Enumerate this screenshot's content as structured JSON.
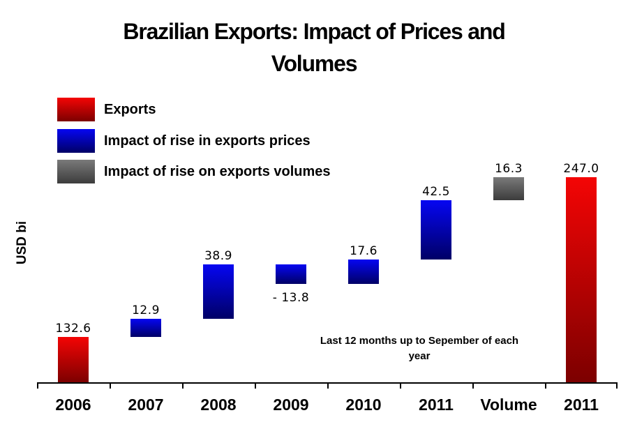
{
  "chart_data": {
    "type": "bar",
    "subtype": "waterfall",
    "title": "Brazilian Exports: Impact of Prices and Volumes",
    "title_lines": [
      "Brazilian Exports: Impact of Prices and",
      "Volumes"
    ],
    "ylabel": "USD bi",
    "annotation": "Last 12 months up to Sepember of each year",
    "annotation_lines": [
      "Last 12 months up to Sepember of each",
      "year"
    ],
    "categories": [
      "2006",
      "2007",
      "2008",
      "2009",
      "2010",
      "2011",
      "Volume",
      "2011"
    ],
    "bars": [
      {
        "category": "2006",
        "value": 132.6,
        "label": "132.6",
        "kind": "total",
        "series": "Exports"
      },
      {
        "category": "2007",
        "value": 12.9,
        "label": "12.9",
        "kind": "delta",
        "series": "Impact of rise in exports prices"
      },
      {
        "category": "2008",
        "value": 38.9,
        "label": "38.9",
        "kind": "delta",
        "series": "Impact of rise in exports prices"
      },
      {
        "category": "2009",
        "value": -13.8,
        "label": "- 13.8",
        "kind": "delta",
        "series": "Impact of rise in exports prices"
      },
      {
        "category": "2010",
        "value": 17.6,
        "label": "17.6",
        "kind": "delta",
        "series": "Impact of rise in exports prices"
      },
      {
        "category": "2011",
        "value": 42.5,
        "label": "42.5",
        "kind": "delta",
        "series": "Impact of rise in exports prices"
      },
      {
        "category": "Volume",
        "value": 16.3,
        "label": "16.3",
        "kind": "delta",
        "series": "Impact of rise on exports volumes"
      },
      {
        "category": "2011",
        "value": 247.0,
        "label": "247.0",
        "kind": "total",
        "series": "Exports"
      }
    ],
    "axis": {
      "y_min": 100,
      "y_implied_max": 250,
      "gridlines": false,
      "y_tick_labels_visible": false,
      "axis_color": "#000000"
    },
    "legend": {
      "position": "top-left",
      "entries": [
        {
          "label": "Exports",
          "color_top": "#f40505",
          "color_bottom": "#7c0000"
        },
        {
          "label": "Impact of rise in exports prices",
          "color_top": "#0606f2",
          "color_bottom": "#000066"
        },
        {
          "label": "Impact of rise on exports volumes",
          "color_top": "#7a7a7a",
          "color_bottom": "#3c3c3c"
        }
      ]
    }
  }
}
